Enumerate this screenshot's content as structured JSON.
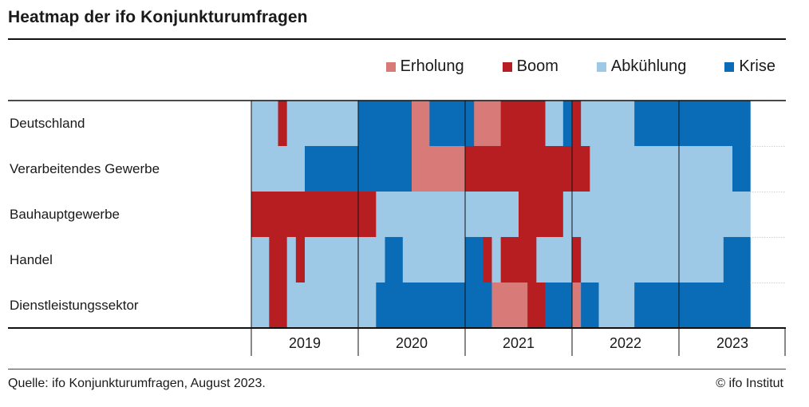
{
  "title": "Heatmap der ifo Konjunkturumfragen",
  "legend": [
    {
      "label": "Erholung",
      "color": "#d87a78"
    },
    {
      "label": "Boom",
      "color": "#b71e22"
    },
    {
      "label": "Abkühlung",
      "color": "#9dc8e6"
    },
    {
      "label": "Krise",
      "color": "#0a6cb6"
    }
  ],
  "footer": {
    "source": "Quelle: ifo Konjunkturumfragen, August 2023.",
    "copyright": "© ifo Institut"
  },
  "chart_data": {
    "type": "heatmap",
    "title": "Heatmap der ifo Konjunkturumfragen",
    "x_unit": "month",
    "x_start": "2019-01",
    "x_end": "2023-08",
    "years": [
      "2019",
      "2020",
      "2021",
      "2022",
      "2023"
    ],
    "categories": [
      "Erholung",
      "Boom",
      "Abkühlung",
      "Krise"
    ],
    "rows": [
      {
        "label": "Deutschland",
        "segments": [
          {
            "state": "Abkühlung",
            "from": "2019-01",
            "to": "2019-03"
          },
          {
            "state": "Boom",
            "from": "2019-04",
            "to": "2019-04"
          },
          {
            "state": "Abkühlung",
            "from": "2019-05",
            "to": "2019-12"
          },
          {
            "state": "Krise",
            "from": "2020-01",
            "to": "2020-06"
          },
          {
            "state": "Erholung",
            "from": "2020-07",
            "to": "2020-08"
          },
          {
            "state": "Krise",
            "from": "2020-09",
            "to": "2021-01"
          },
          {
            "state": "Erholung",
            "from": "2021-02",
            "to": "2021-04"
          },
          {
            "state": "Boom",
            "from": "2021-05",
            "to": "2021-09"
          },
          {
            "state": "Abkühlung",
            "from": "2021-10",
            "to": "2021-11"
          },
          {
            "state": "Krise",
            "from": "2021-12",
            "to": "2021-12"
          },
          {
            "state": "Boom",
            "from": "2022-01",
            "to": "2022-01"
          },
          {
            "state": "Abkühlung",
            "from": "2022-02",
            "to": "2022-07"
          },
          {
            "state": "Krise",
            "from": "2022-08",
            "to": "2023-08"
          }
        ]
      },
      {
        "label": "Verarbeitendes Gewerbe",
        "segments": [
          {
            "state": "Abkühlung",
            "from": "2019-01",
            "to": "2019-06"
          },
          {
            "state": "Krise",
            "from": "2019-07",
            "to": "2020-06"
          },
          {
            "state": "Erholung",
            "from": "2020-07",
            "to": "2020-12"
          },
          {
            "state": "Boom",
            "from": "2021-01",
            "to": "2022-02"
          },
          {
            "state": "Abkühlung",
            "from": "2022-03",
            "to": "2023-06"
          },
          {
            "state": "Krise",
            "from": "2023-07",
            "to": "2023-08"
          }
        ]
      },
      {
        "label": "Bauhauptgewerbe",
        "segments": [
          {
            "state": "Boom",
            "from": "2019-01",
            "to": "2020-02"
          },
          {
            "state": "Abkühlung",
            "from": "2020-03",
            "to": "2021-06"
          },
          {
            "state": "Boom",
            "from": "2021-07",
            "to": "2021-11"
          },
          {
            "state": "Abkühlung",
            "from": "2021-12",
            "to": "2023-08"
          }
        ]
      },
      {
        "label": "Handel",
        "segments": [
          {
            "state": "Abkühlung",
            "from": "2019-01",
            "to": "2019-02"
          },
          {
            "state": "Boom",
            "from": "2019-03",
            "to": "2019-04"
          },
          {
            "state": "Abkühlung",
            "from": "2019-05",
            "to": "2019-05"
          },
          {
            "state": "Boom",
            "from": "2019-06",
            "to": "2019-06"
          },
          {
            "state": "Abkühlung",
            "from": "2019-07",
            "to": "2020-03"
          },
          {
            "state": "Krise",
            "from": "2020-04",
            "to": "2020-05"
          },
          {
            "state": "Abkühlung",
            "from": "2020-06",
            "to": "2020-12"
          },
          {
            "state": "Krise",
            "from": "2021-01",
            "to": "2021-02"
          },
          {
            "state": "Boom",
            "from": "2021-03",
            "to": "2021-03"
          },
          {
            "state": "Abkühlung",
            "from": "2021-04",
            "to": "2021-04"
          },
          {
            "state": "Boom",
            "from": "2021-05",
            "to": "2021-08"
          },
          {
            "state": "Abkühlung",
            "from": "2021-09",
            "to": "2021-12"
          },
          {
            "state": "Boom",
            "from": "2022-01",
            "to": "2022-01"
          },
          {
            "state": "Abkühlung",
            "from": "2022-02",
            "to": "2023-05"
          },
          {
            "state": "Krise",
            "from": "2023-06",
            "to": "2023-08"
          }
        ]
      },
      {
        "label": "Dienstleistungssektor",
        "segments": [
          {
            "state": "Abkühlung",
            "from": "2019-01",
            "to": "2019-02"
          },
          {
            "state": "Boom",
            "from": "2019-03",
            "to": "2019-04"
          },
          {
            "state": "Abkühlung",
            "from": "2019-05",
            "to": "2020-02"
          },
          {
            "state": "Krise",
            "from": "2020-03",
            "to": "2021-03"
          },
          {
            "state": "Erholung",
            "from": "2021-04",
            "to": "2021-07"
          },
          {
            "state": "Boom",
            "from": "2021-08",
            "to": "2021-09"
          },
          {
            "state": "Krise",
            "from": "2021-10",
            "to": "2021-12"
          },
          {
            "state": "Erholung",
            "from": "2022-01",
            "to": "2022-01"
          },
          {
            "state": "Krise",
            "from": "2022-02",
            "to": "2022-03"
          },
          {
            "state": "Abkühlung",
            "from": "2022-04",
            "to": "2022-07"
          },
          {
            "state": "Krise",
            "from": "2022-08",
            "to": "2023-08"
          }
        ]
      }
    ]
  }
}
